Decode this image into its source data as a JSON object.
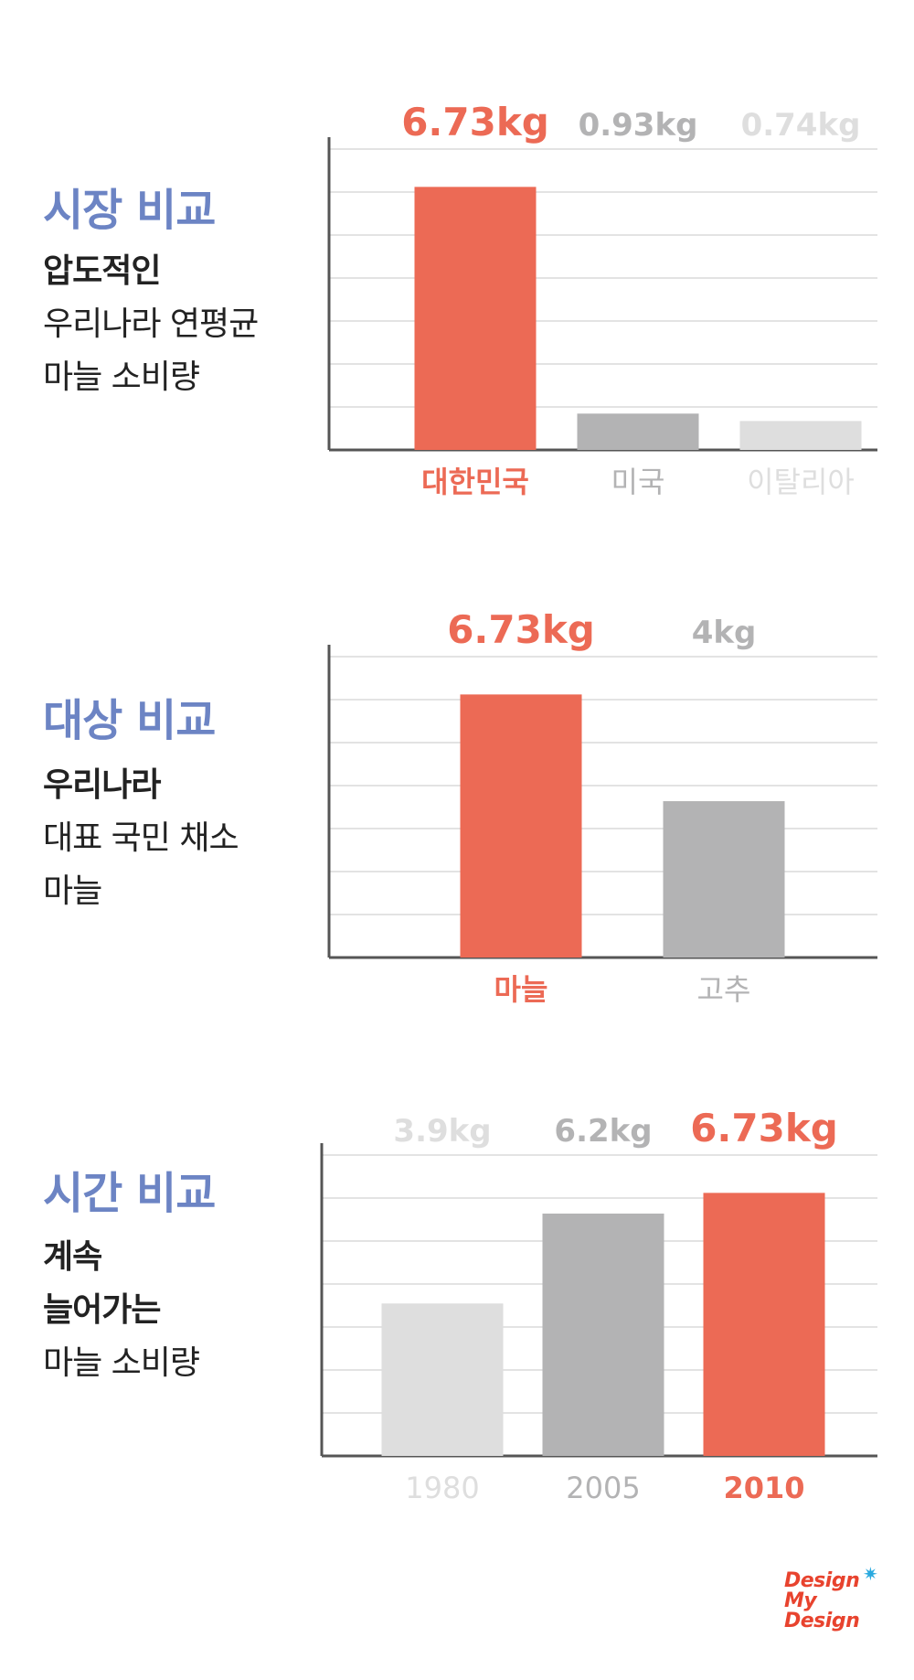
{
  "colors": {
    "highlight": "#ec6a55",
    "mid_gray": "#b3b3b4",
    "light_gray": "#dedede",
    "title_blue": "#6c84c4",
    "grid": "#e3e3e3",
    "axis": "#555555",
    "logo_red": "#e8432e",
    "logo_star": "#29a9df"
  },
  "sections": [
    {
      "title": "시장 비교",
      "lines": [
        "압도적인",
        "우리나라 연평균",
        "마늘 소비량"
      ]
    },
    {
      "title": "대상 비교",
      "lines": [
        "우리나라",
        "대표 국민 채소",
        "마늘"
      ]
    },
    {
      "title": "시간 비교",
      "lines": [
        "계속",
        "늘어가는",
        "마늘 소비량"
      ]
    }
  ],
  "chart_data": [
    {
      "type": "bar",
      "categories": [
        "대한민국",
        "미국",
        "이탈리아"
      ],
      "values": [
        6.73,
        0.93,
        0.74
      ],
      "value_labels": [
        "6.73kg",
        "0.93kg",
        "0.74kg"
      ],
      "ylim": [
        0,
        7.3
      ],
      "grid": true,
      "bar_colors": [
        "highlight",
        "mid_gray",
        "light_gray"
      ]
    },
    {
      "type": "bar",
      "categories": [
        "마늘",
        "고추"
      ],
      "values": [
        6.73,
        4
      ],
      "value_labels": [
        "6.73kg",
        "4kg"
      ],
      "ylim": [
        0,
        7.3
      ],
      "grid": true,
      "bar_colors": [
        "highlight",
        "mid_gray"
      ]
    },
    {
      "type": "bar",
      "categories": [
        "1980",
        "2005",
        "2010"
      ],
      "values": [
        3.9,
        6.2,
        6.73
      ],
      "value_labels": [
        "3.9kg",
        "6.2kg",
        "6.73kg"
      ],
      "ylim": [
        0,
        7.3
      ],
      "grid": true,
      "bar_colors": [
        "light_gray",
        "mid_gray",
        "highlight"
      ]
    }
  ],
  "logo": {
    "lines": [
      "Design",
      "My",
      "Design"
    ],
    "star": "✷"
  }
}
